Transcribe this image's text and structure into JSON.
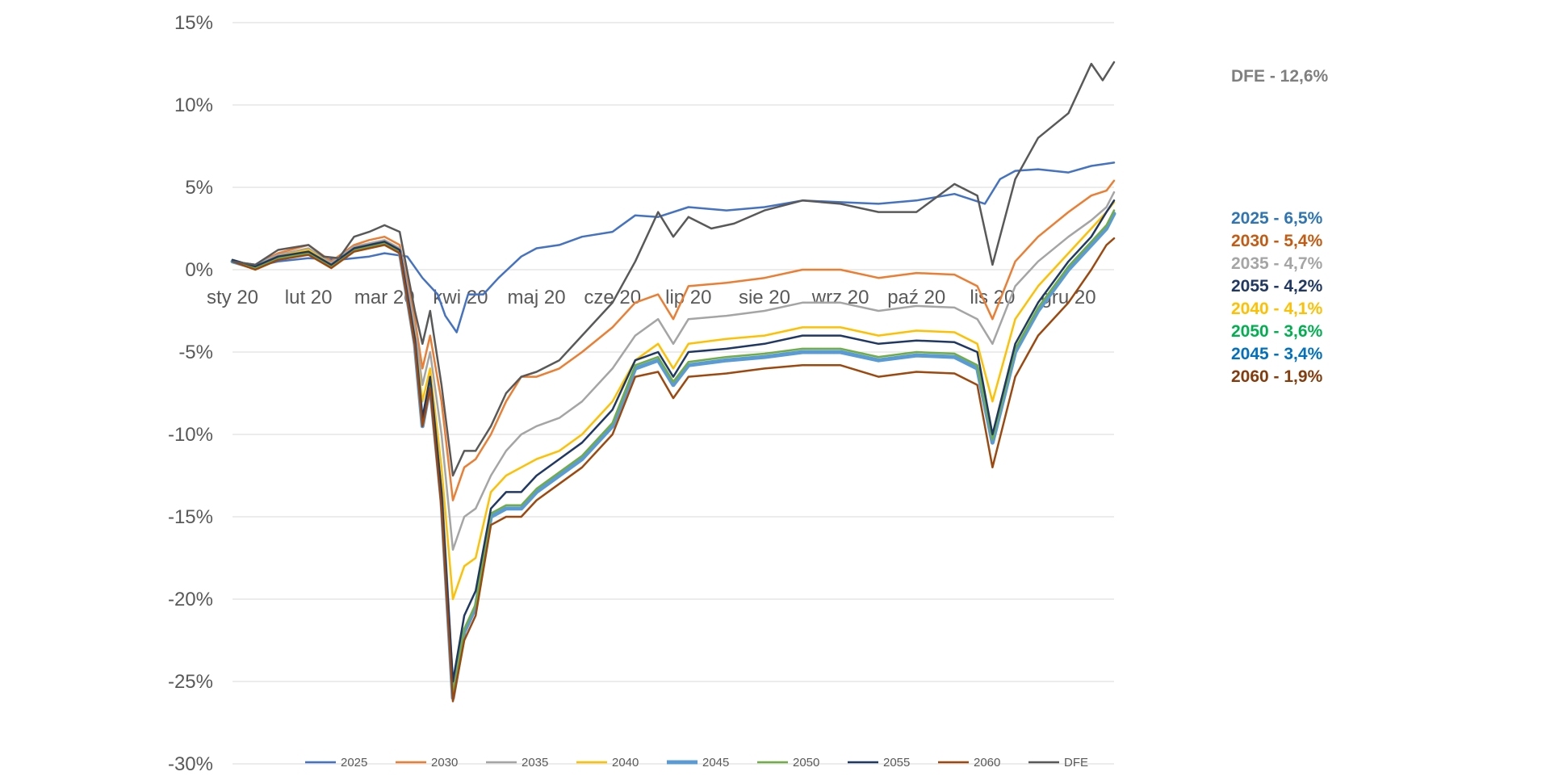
{
  "chart_data": {
    "type": "line",
    "title": "",
    "xlabel": "",
    "ylabel": "",
    "ylim": [
      -30,
      15
    ],
    "ytick_values": [
      15,
      10,
      5,
      0,
      -5,
      -10,
      -15,
      -20,
      -25,
      -30
    ],
    "ytick_labels": [
      "15%",
      "10%",
      "5%",
      "0%",
      "-5%",
      "-10%",
      "-15%",
      "-20%",
      "-25%",
      "-30%"
    ],
    "xlim": [
      0,
      11.6
    ],
    "xtick_labels": [
      "sty 20",
      "lut 20",
      "mar 20",
      "kwi 20",
      "maj 20",
      "cze 20",
      "lip 20",
      "sie 20",
      "wrz 20",
      "paź 20",
      "lis 20",
      "gru 20"
    ],
    "grid": true,
    "legend_position": "bottom",
    "series": [
      {
        "name": "2025",
        "color": "#4472C4",
        "width": 2.5,
        "x": [
          0,
          0.3,
          0.6,
          1.0,
          1.4,
          1.8,
          2.0,
          2.3,
          2.5,
          2.7,
          2.8,
          2.95,
          3.1,
          3.3,
          3.5,
          3.8,
          4.0,
          4.3,
          4.6,
          5.0,
          5.3,
          5.6,
          6.0,
          6.5,
          7.0,
          7.5,
          8.0,
          8.5,
          9.0,
          9.5,
          9.9,
          10.1,
          10.3,
          10.6,
          11.0,
          11.3,
          11.6
        ],
        "y": [
          0.5,
          0.2,
          0.5,
          0.7,
          0.6,
          0.8,
          1.0,
          0.8,
          -0.5,
          -1.5,
          -2.8,
          -3.8,
          -1.5,
          -1.5,
          -0.5,
          0.8,
          1.3,
          1.5,
          2.0,
          2.3,
          3.3,
          3.2,
          3.8,
          3.6,
          3.8,
          4.2,
          4.1,
          4.0,
          4.2,
          4.6,
          4.0,
          5.5,
          6.0,
          6.1,
          5.9,
          6.3,
          6.5
        ]
      },
      {
        "name": "2030",
        "color": "#ED7D31",
        "width": 2.5,
        "x": [
          0,
          0.3,
          0.6,
          1.0,
          1.3,
          1.6,
          1.8,
          2.0,
          2.2,
          2.4,
          2.5,
          2.6,
          2.75,
          2.9,
          3.05,
          3.2,
          3.4,
          3.6,
          3.8,
          4.0,
          4.3,
          4.6,
          5.0,
          5.3,
          5.6,
          5.8,
          6.0,
          6.5,
          7.0,
          7.5,
          8.0,
          8.5,
          9.0,
          9.5,
          9.8,
          10.0,
          10.3,
          10.6,
          11.0,
          11.3,
          11.5,
          11.6
        ],
        "y": [
          0.5,
          0.3,
          1.0,
          1.5,
          0.5,
          1.5,
          1.8,
          2.0,
          1.5,
          -3.0,
          -6.0,
          -4.0,
          -8.0,
          -14.0,
          -12.0,
          -11.5,
          -10.0,
          -8.0,
          -6.5,
          -6.5,
          -6.0,
          -5.0,
          -3.5,
          -2.0,
          -1.5,
          -3.0,
          -1.0,
          -0.8,
          -0.5,
          0.0,
          0.0,
          -0.5,
          -0.2,
          -0.3,
          -1.0,
          -3.0,
          0.5,
          2.0,
          3.5,
          4.5,
          4.8,
          5.4
        ]
      },
      {
        "name": "2035",
        "color": "#A5A5A5",
        "width": 2.5,
        "x": [
          0,
          0.3,
          0.6,
          1.0,
          1.3,
          1.6,
          1.8,
          2.0,
          2.2,
          2.4,
          2.5,
          2.6,
          2.75,
          2.9,
          3.05,
          3.2,
          3.4,
          3.6,
          3.8,
          4.0,
          4.3,
          4.6,
          5.0,
          5.3,
          5.6,
          5.8,
          6.0,
          6.5,
          7.0,
          7.5,
          8.0,
          8.5,
          9.0,
          9.5,
          9.8,
          10.0,
          10.3,
          10.6,
          11.0,
          11.3,
          11.5,
          11.6
        ],
        "y": [
          0.5,
          0.3,
          0.9,
          1.3,
          0.4,
          1.4,
          1.6,
          1.8,
          1.3,
          -3.5,
          -7.0,
          -5.0,
          -10.0,
          -17.0,
          -15.0,
          -14.5,
          -12.5,
          -11.0,
          -10.0,
          -9.5,
          -9.0,
          -8.0,
          -6.0,
          -4.0,
          -3.0,
          -4.5,
          -3.0,
          -2.8,
          -2.5,
          -2.0,
          -2.0,
          -2.5,
          -2.2,
          -2.3,
          -3.0,
          -4.5,
          -1.0,
          0.5,
          2.0,
          3.0,
          3.8,
          4.7
        ]
      },
      {
        "name": "2040",
        "color": "#FFC000",
        "width": 2.5,
        "x": [
          0,
          0.3,
          0.6,
          1.0,
          1.3,
          1.6,
          1.8,
          2.0,
          2.2,
          2.4,
          2.5,
          2.6,
          2.75,
          2.9,
          3.05,
          3.2,
          3.4,
          3.6,
          3.8,
          4.0,
          4.3,
          4.6,
          5.0,
          5.3,
          5.6,
          5.8,
          6.0,
          6.5,
          7.0,
          7.5,
          8.0,
          8.5,
          9.0,
          9.5,
          9.8,
          10.0,
          10.3,
          10.6,
          11.0,
          11.3,
          11.5,
          11.6
        ],
        "y": [
          0.5,
          0.2,
          0.8,
          1.2,
          0.3,
          1.3,
          1.5,
          1.7,
          1.2,
          -4.0,
          -8.0,
          -6.0,
          -12.0,
          -20.0,
          -18.0,
          -17.5,
          -13.5,
          -12.5,
          -12.0,
          -11.5,
          -11.0,
          -10.0,
          -8.0,
          -5.5,
          -4.5,
          -6.0,
          -4.5,
          -4.2,
          -4.0,
          -3.5,
          -3.5,
          -4.0,
          -3.7,
          -3.8,
          -4.5,
          -8.0,
          -3.0,
          -1.0,
          1.0,
          2.5,
          3.5,
          4.1
        ]
      },
      {
        "name": "2045",
        "color": "#5B9BD5",
        "width": 5,
        "x": [
          0,
          0.3,
          0.6,
          1.0,
          1.3,
          1.6,
          1.8,
          2.0,
          2.2,
          2.4,
          2.5,
          2.6,
          2.75,
          2.9,
          3.05,
          3.2,
          3.4,
          3.6,
          3.8,
          4.0,
          4.3,
          4.6,
          5.0,
          5.3,
          5.6,
          5.8,
          6.0,
          6.5,
          7.0,
          7.5,
          8.0,
          8.5,
          9.0,
          9.5,
          9.8,
          10.0,
          10.3,
          10.6,
          11.0,
          11.3,
          11.5,
          11.6
        ],
        "y": [
          0.5,
          0.1,
          0.7,
          1.0,
          0.2,
          1.2,
          1.4,
          1.6,
          1.1,
          -4.5,
          -9.5,
          -7.0,
          -14.0,
          -26.0,
          -22.0,
          -20.5,
          -15.0,
          -14.5,
          -14.5,
          -13.5,
          -12.5,
          -11.5,
          -9.5,
          -6.0,
          -5.5,
          -7.0,
          -5.8,
          -5.5,
          -5.3,
          -5.0,
          -5.0,
          -5.5,
          -5.2,
          -5.3,
          -6.0,
          -10.5,
          -5.0,
          -2.5,
          0.0,
          1.5,
          2.5,
          3.4
        ]
      },
      {
        "name": "2050",
        "color": "#70AD47",
        "width": 2.5,
        "x": [
          0,
          0.3,
          0.6,
          1.0,
          1.3,
          1.6,
          1.8,
          2.0,
          2.2,
          2.4,
          2.5,
          2.6,
          2.75,
          2.9,
          3.05,
          3.2,
          3.4,
          3.6,
          3.8,
          4.0,
          4.3,
          4.6,
          5.0,
          5.3,
          5.6,
          5.8,
          6.0,
          6.5,
          7.0,
          7.5,
          8.0,
          8.5,
          9.0,
          9.5,
          9.8,
          10.0,
          10.3,
          10.6,
          11.0,
          11.3,
          11.5,
          11.6
        ],
        "y": [
          0.5,
          0.1,
          0.7,
          1.0,
          0.2,
          1.2,
          1.4,
          1.6,
          1.1,
          -4.4,
          -9.3,
          -6.9,
          -13.8,
          -25.8,
          -21.8,
          -20.3,
          -14.8,
          -14.3,
          -14.3,
          -13.3,
          -12.3,
          -11.3,
          -9.3,
          -5.8,
          -5.3,
          -6.8,
          -5.6,
          -5.3,
          -5.1,
          -4.8,
          -4.8,
          -5.3,
          -5.0,
          -5.1,
          -5.8,
          -10.3,
          -4.8,
          -2.3,
          0.2,
          1.7,
          2.7,
          3.6
        ]
      },
      {
        "name": "2055",
        "color": "#203864",
        "width": 2.5,
        "x": [
          0,
          0.3,
          0.6,
          1.0,
          1.3,
          1.6,
          1.8,
          2.0,
          2.2,
          2.4,
          2.5,
          2.6,
          2.75,
          2.9,
          3.05,
          3.2,
          3.4,
          3.6,
          3.8,
          4.0,
          4.3,
          4.6,
          5.0,
          5.3,
          5.6,
          5.8,
          6.0,
          6.5,
          7.0,
          7.5,
          8.0,
          8.5,
          9.0,
          9.5,
          9.8,
          10.0,
          10.3,
          10.6,
          11.0,
          11.3,
          11.5,
          11.6
        ],
        "y": [
          0.6,
          0.2,
          0.8,
          1.1,
          0.3,
          1.3,
          1.5,
          1.7,
          1.2,
          -4.2,
          -9.0,
          -6.5,
          -13.5,
          -25.0,
          -21.0,
          -19.5,
          -14.5,
          -13.5,
          -13.5,
          -12.5,
          -11.5,
          -10.5,
          -8.5,
          -5.5,
          -5.0,
          -6.5,
          -5.0,
          -4.8,
          -4.5,
          -4.0,
          -4.0,
          -4.5,
          -4.3,
          -4.4,
          -5.0,
          -10.0,
          -4.5,
          -2.0,
          0.5,
          2.0,
          3.5,
          4.2
        ]
      },
      {
        "name": "2060",
        "color": "#9E480E",
        "width": 2.5,
        "x": [
          0,
          0.3,
          0.6,
          1.0,
          1.3,
          1.6,
          1.8,
          2.0,
          2.2,
          2.4,
          2.5,
          2.6,
          2.75,
          2.9,
          3.05,
          3.2,
          3.4,
          3.6,
          3.8,
          4.0,
          4.3,
          4.6,
          5.0,
          5.3,
          5.6,
          5.8,
          6.0,
          6.5,
          7.0,
          7.5,
          8.0,
          8.5,
          9.0,
          9.5,
          9.8,
          10.0,
          10.3,
          10.6,
          11.0,
          11.3,
          11.5,
          11.6
        ],
        "y": [
          0.5,
          0.0,
          0.6,
          0.9,
          0.1,
          1.1,
          1.3,
          1.5,
          1.0,
          -4.6,
          -9.5,
          -7.2,
          -14.5,
          -26.2,
          -22.5,
          -21.0,
          -15.5,
          -15.0,
          -15.0,
          -14.0,
          -13.0,
          -12.0,
          -10.0,
          -6.5,
          -6.2,
          -7.8,
          -6.5,
          -6.3,
          -6.0,
          -5.8,
          -5.8,
          -6.5,
          -6.2,
          -6.3,
          -7.0,
          -12.0,
          -6.5,
          -4.0,
          -2.0,
          0.0,
          1.5,
          1.9
        ]
      },
      {
        "name": "DFE",
        "color": "#595959",
        "width": 2.5,
        "x": [
          0,
          0.3,
          0.6,
          1.0,
          1.2,
          1.4,
          1.6,
          1.8,
          2.0,
          2.2,
          2.4,
          2.5,
          2.6,
          2.75,
          2.9,
          3.05,
          3.2,
          3.4,
          3.6,
          3.8,
          4.0,
          4.3,
          4.6,
          5.0,
          5.3,
          5.6,
          5.8,
          6.0,
          6.3,
          6.6,
          7.0,
          7.5,
          8.0,
          8.5,
          9.0,
          9.5,
          9.8,
          10.0,
          10.3,
          10.6,
          11.0,
          11.3,
          11.45,
          11.6
        ],
        "y": [
          0.5,
          0.3,
          1.2,
          1.5,
          0.8,
          0.7,
          2.0,
          2.3,
          2.7,
          2.3,
          -2.5,
          -4.5,
          -2.5,
          -7.0,
          -12.5,
          -11.0,
          -11.0,
          -9.5,
          -7.5,
          -6.5,
          -6.2,
          -5.5,
          -4.0,
          -2.0,
          0.5,
          3.5,
          2.0,
          3.2,
          2.5,
          2.8,
          3.6,
          4.2,
          4.0,
          3.5,
          3.5,
          5.2,
          4.5,
          0.3,
          5.5,
          8.0,
          9.5,
          12.5,
          11.5,
          12.6
        ]
      }
    ]
  },
  "annotations": [
    {
      "text": "DFE - 12,6%",
      "color": "#7F7F7F"
    },
    {
      "text": "2025 - 6,5%",
      "color": "#2E75B6"
    },
    {
      "text": "2030 - 5,4%",
      "color": "#C55A11"
    },
    {
      "text": "2035 - 4,7%",
      "color": "#A5A5A5"
    },
    {
      "text": "2055 - 4,2%",
      "color": "#203864"
    },
    {
      "text": "2040 - 4,1%",
      "color": "#FFC000"
    },
    {
      "text": "2050 - 3,6%",
      "color": "#00B050"
    },
    {
      "text": "2045 - 3,4%",
      "color": "#0070C0"
    },
    {
      "text": "2060 - 1,9%",
      "color": "#843C0C"
    }
  ]
}
